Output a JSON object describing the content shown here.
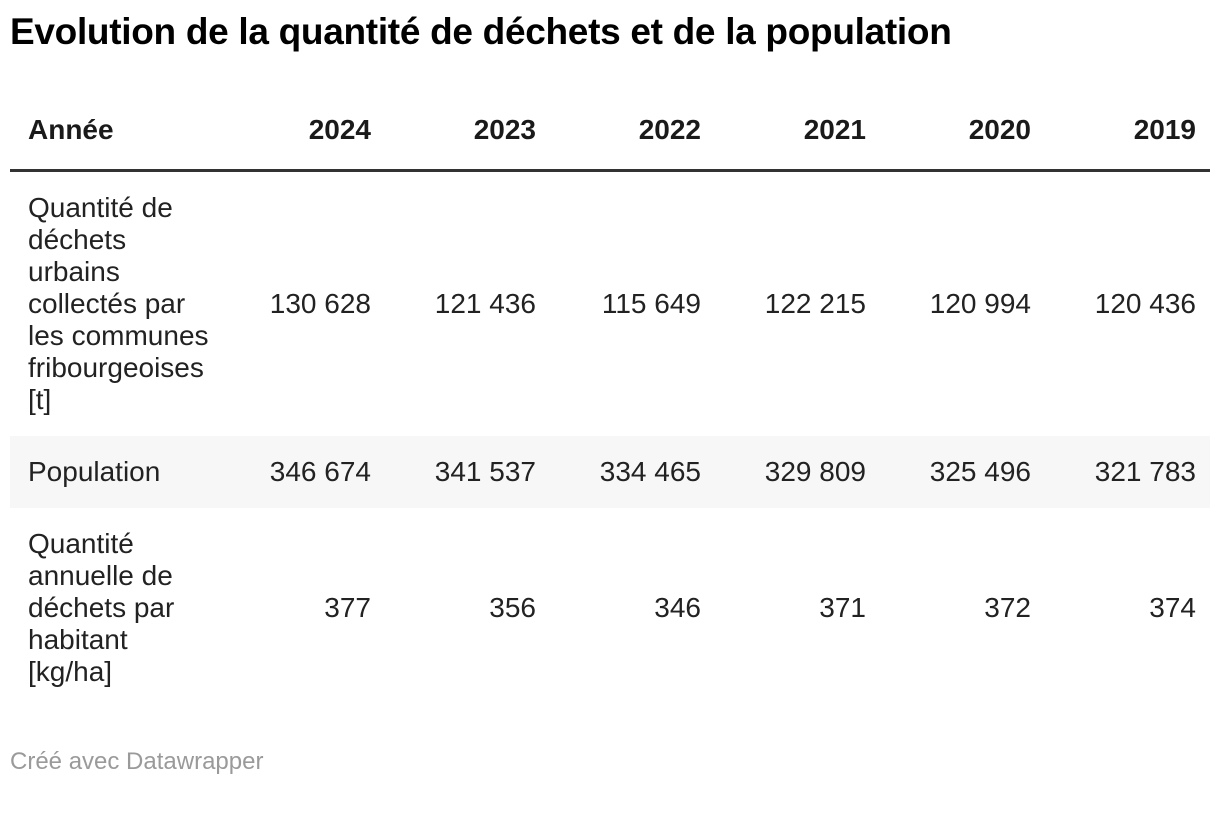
{
  "title": "Evolution de la quantité de déchets et de la population",
  "table": {
    "header": {
      "label": "Année",
      "years": [
        "2024",
        "2023",
        "2022",
        "2021",
        "2020",
        "2019"
      ]
    },
    "rows": [
      {
        "label": "Quantité de déchets urbains collectés par les communes fribourgeoises [t]",
        "values": [
          "130 628",
          "121 436",
          "115 649",
          "122 215",
          "120 994",
          "120 436"
        ]
      },
      {
        "label": "Population",
        "values": [
          "346 674",
          "341 537",
          "334 465",
          "329 809",
          "325 496",
          "321 783"
        ]
      },
      {
        "label": "Quantité annuelle de déchets par habitant [kg/ha]",
        "values": [
          "377",
          "356",
          "346",
          "371",
          "372",
          "374"
        ]
      }
    ]
  },
  "footer": {
    "attribution": "Créé avec Datawrapper"
  },
  "colors": {
    "title_text": "#000000",
    "body_text": "#222222",
    "header_rule": "#333333",
    "zebra_row_background": "#f7f7f7",
    "attribution_text": "#9a9a9a"
  },
  "chart_data": {
    "type": "table",
    "title": "Evolution de la quantité de déchets et de la population",
    "columns": [
      "Année",
      "2024",
      "2023",
      "2022",
      "2021",
      "2020",
      "2019"
    ],
    "rows": [
      {
        "label": "Quantité de déchets urbains collectés par les communes fribourgeoises [t]",
        "values": [
          130628,
          121436,
          115649,
          122215,
          120994,
          120436
        ]
      },
      {
        "label": "Population",
        "values": [
          346674,
          341537,
          334465,
          329809,
          325496,
          321783
        ]
      },
      {
        "label": "Quantité annuelle de déchets par habitant [kg/ha]",
        "values": [
          377,
          356,
          346,
          371,
          372,
          374
        ]
      }
    ],
    "layout_hints": {
      "value_alignment": "right",
      "zebra_striping": true,
      "striped_row_index": 1,
      "attribution": "Créé avec Datawrapper"
    }
  }
}
